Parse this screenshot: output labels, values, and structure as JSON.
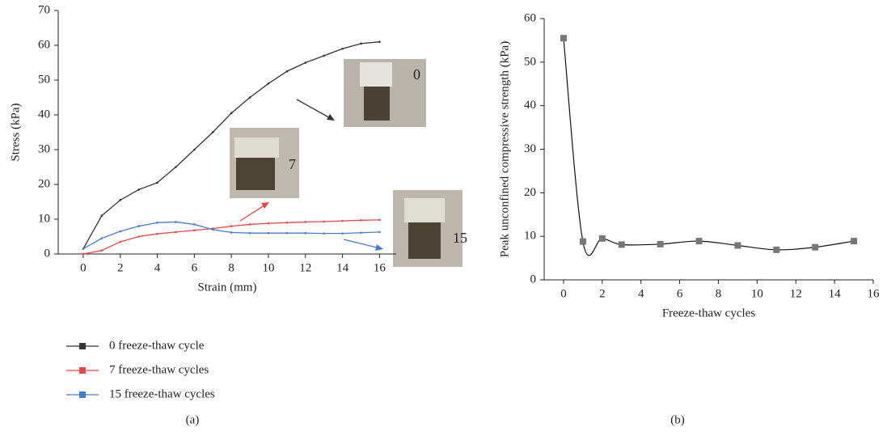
{
  "chart_data": [
    {
      "type": "line",
      "caption": "(a)",
      "xlabel": "Strain (mm)",
      "ylabel": "Stress (kPa)",
      "x": [
        0,
        1,
        2,
        3,
        4,
        5,
        6,
        7,
        8,
        9,
        10,
        11,
        12,
        13,
        14,
        15,
        16
      ],
      "series": [
        {
          "name": "0 freeze-thaw cycle",
          "color": "#333333",
          "values": [
            1.5,
            11,
            15.5,
            18.5,
            20.5,
            25,
            30,
            35,
            40.5,
            45,
            49,
            52.5,
            55,
            57,
            59,
            60.5,
            61
          ]
        },
        {
          "name": "7 freeze-thaw cycles",
          "color": "#e8474b",
          "values": [
            0,
            1,
            3.5,
            5,
            5.8,
            6.3,
            6.8,
            7.3,
            8,
            8.5,
            8.8,
            9,
            9.2,
            9.3,
            9.5,
            9.7,
            9.8
          ]
        },
        {
          "name": "15 freeze-thaw cycles",
          "color": "#4a7cc9",
          "values": [
            1.5,
            4.5,
            6.5,
            8,
            9,
            9.2,
            8.5,
            7,
            6.2,
            6,
            6,
            6,
            6,
            5.9,
            5.9,
            6.1,
            6.3
          ]
        }
      ],
      "annotations": [
        {
          "text": "0",
          "color": "#333333"
        },
        {
          "text": "7",
          "color": "#e8474b"
        },
        {
          "text": "15",
          "color": "#4a7cc9"
        }
      ],
      "xlim": [
        -1.35,
        16.9
      ],
      "ylim": [
        0,
        70
      ],
      "xticks": [
        0,
        2,
        4,
        6,
        8,
        10,
        12,
        14,
        16
      ],
      "yticks": [
        0,
        10,
        20,
        30,
        40,
        50,
        60,
        70
      ],
      "legend": "bottom"
    },
    {
      "type": "scatter",
      "caption": "(b)",
      "xlabel": "Freeze-thaw cycles",
      "ylabel": "Peak unconfined compressive strength (kPa)",
      "x": [
        0,
        1,
        2,
        3,
        5,
        7,
        9,
        11,
        13,
        15
      ],
      "values": [
        55.5,
        8.8,
        9.5,
        8.1,
        8.2,
        8.9,
        7.9,
        6.9,
        7.5,
        8.9
      ],
      "color": "#777777",
      "smooth": true,
      "xlim": [
        -1,
        16
      ],
      "ylim": [
        0,
        60
      ],
      "xticks": [
        0,
        2,
        4,
        6,
        8,
        10,
        12,
        14,
        16
      ],
      "yticks": [
        0,
        10,
        20,
        30,
        40,
        50,
        60
      ]
    }
  ]
}
